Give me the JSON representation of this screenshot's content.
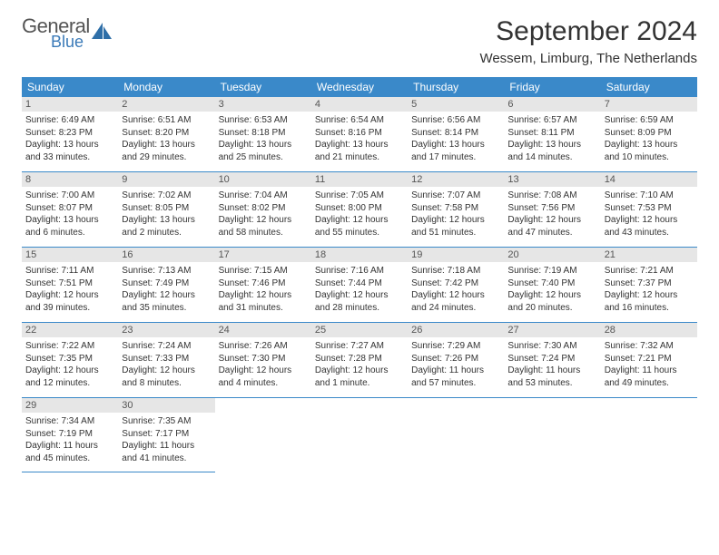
{
  "logo": {
    "general": "General",
    "blue": "Blue"
  },
  "title": "September 2024",
  "location": "Wessem, Limburg, The Netherlands",
  "colors": {
    "header_bg": "#3a89c9",
    "header_text": "#ffffff",
    "daynum_bg": "#e6e6e6",
    "border": "#3a89c9",
    "logo_blue": "#3a7ab8",
    "body_text": "#333333"
  },
  "weekdays": [
    "Sunday",
    "Monday",
    "Tuesday",
    "Wednesday",
    "Thursday",
    "Friday",
    "Saturday"
  ],
  "weeks": [
    [
      {
        "n": "1",
        "sr": "6:49 AM",
        "ss": "8:23 PM",
        "dh": "13",
        "dm": "33"
      },
      {
        "n": "2",
        "sr": "6:51 AM",
        "ss": "8:20 PM",
        "dh": "13",
        "dm": "29"
      },
      {
        "n": "3",
        "sr": "6:53 AM",
        "ss": "8:18 PM",
        "dh": "13",
        "dm": "25"
      },
      {
        "n": "4",
        "sr": "6:54 AM",
        "ss": "8:16 PM",
        "dh": "13",
        "dm": "21"
      },
      {
        "n": "5",
        "sr": "6:56 AM",
        "ss": "8:14 PM",
        "dh": "13",
        "dm": "17"
      },
      {
        "n": "6",
        "sr": "6:57 AM",
        "ss": "8:11 PM",
        "dh": "13",
        "dm": "14"
      },
      {
        "n": "7",
        "sr": "6:59 AM",
        "ss": "8:09 PM",
        "dh": "13",
        "dm": "10"
      }
    ],
    [
      {
        "n": "8",
        "sr": "7:00 AM",
        "ss": "8:07 PM",
        "dh": "13",
        "dm": "6"
      },
      {
        "n": "9",
        "sr": "7:02 AM",
        "ss": "8:05 PM",
        "dh": "13",
        "dm": "2"
      },
      {
        "n": "10",
        "sr": "7:04 AM",
        "ss": "8:02 PM",
        "dh": "12",
        "dm": "58"
      },
      {
        "n": "11",
        "sr": "7:05 AM",
        "ss": "8:00 PM",
        "dh": "12",
        "dm": "55"
      },
      {
        "n": "12",
        "sr": "7:07 AM",
        "ss": "7:58 PM",
        "dh": "12",
        "dm": "51"
      },
      {
        "n": "13",
        "sr": "7:08 AM",
        "ss": "7:56 PM",
        "dh": "12",
        "dm": "47"
      },
      {
        "n": "14",
        "sr": "7:10 AM",
        "ss": "7:53 PM",
        "dh": "12",
        "dm": "43"
      }
    ],
    [
      {
        "n": "15",
        "sr": "7:11 AM",
        "ss": "7:51 PM",
        "dh": "12",
        "dm": "39"
      },
      {
        "n": "16",
        "sr": "7:13 AM",
        "ss": "7:49 PM",
        "dh": "12",
        "dm": "35"
      },
      {
        "n": "17",
        "sr": "7:15 AM",
        "ss": "7:46 PM",
        "dh": "12",
        "dm": "31"
      },
      {
        "n": "18",
        "sr": "7:16 AM",
        "ss": "7:44 PM",
        "dh": "12",
        "dm": "28"
      },
      {
        "n": "19",
        "sr": "7:18 AM",
        "ss": "7:42 PM",
        "dh": "12",
        "dm": "24"
      },
      {
        "n": "20",
        "sr": "7:19 AM",
        "ss": "7:40 PM",
        "dh": "12",
        "dm": "20"
      },
      {
        "n": "21",
        "sr": "7:21 AM",
        "ss": "7:37 PM",
        "dh": "12",
        "dm": "16"
      }
    ],
    [
      {
        "n": "22",
        "sr": "7:22 AM",
        "ss": "7:35 PM",
        "dh": "12",
        "dm": "12"
      },
      {
        "n": "23",
        "sr": "7:24 AM",
        "ss": "7:33 PM",
        "dh": "12",
        "dm": "8"
      },
      {
        "n": "24",
        "sr": "7:26 AM",
        "ss": "7:30 PM",
        "dh": "12",
        "dm": "4"
      },
      {
        "n": "25",
        "sr": "7:27 AM",
        "ss": "7:28 PM",
        "dh": "12",
        "dm": "1",
        "singular": true
      },
      {
        "n": "26",
        "sr": "7:29 AM",
        "ss": "7:26 PM",
        "dh": "11",
        "dm": "57"
      },
      {
        "n": "27",
        "sr": "7:30 AM",
        "ss": "7:24 PM",
        "dh": "11",
        "dm": "53"
      },
      {
        "n": "28",
        "sr": "7:32 AM",
        "ss": "7:21 PM",
        "dh": "11",
        "dm": "49"
      }
    ],
    [
      {
        "n": "29",
        "sr": "7:34 AM",
        "ss": "7:19 PM",
        "dh": "11",
        "dm": "45"
      },
      {
        "n": "30",
        "sr": "7:35 AM",
        "ss": "7:17 PM",
        "dh": "11",
        "dm": "41"
      },
      null,
      null,
      null,
      null,
      null
    ]
  ]
}
